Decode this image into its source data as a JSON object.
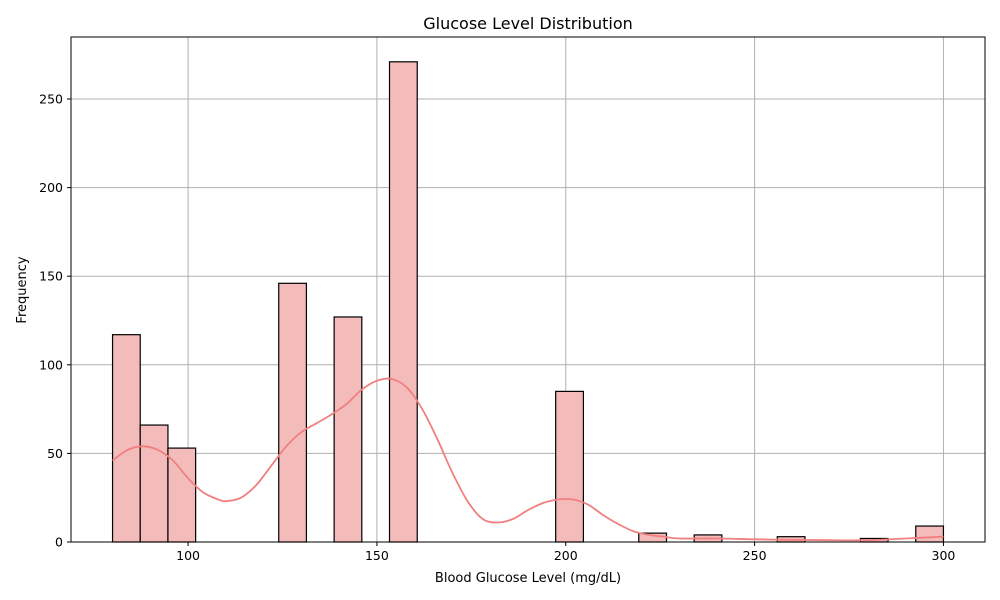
{
  "chart_data": {
    "type": "bar",
    "title": "Glucose Level Distribution",
    "xlabel": "Blood Glucose Level (mg/dL)",
    "ylabel": "Frequency",
    "xlim": [
      69,
      311
    ],
    "ylim": [
      0,
      285
    ],
    "x_ticks": [
      100,
      150,
      200,
      250,
      300
    ],
    "y_ticks": [
      0,
      50,
      100,
      150,
      200,
      250
    ],
    "grid": true,
    "bar_color": "#f4bbbb",
    "bar_edge_color": "#000000",
    "kde_color": "#f08080",
    "bins": [
      {
        "start": 80.0,
        "end": 87.33,
        "count": 117
      },
      {
        "start": 87.33,
        "end": 94.67,
        "count": 66
      },
      {
        "start": 94.67,
        "end": 102.0,
        "count": 53
      },
      {
        "start": 102.0,
        "end": 109.33,
        "count": 0
      },
      {
        "start": 109.33,
        "end": 116.67,
        "count": 0
      },
      {
        "start": 116.67,
        "end": 124.0,
        "count": 0
      },
      {
        "start": 124.0,
        "end": 131.33,
        "count": 146
      },
      {
        "start": 131.33,
        "end": 138.67,
        "count": 0
      },
      {
        "start": 138.67,
        "end": 146.0,
        "count": 127
      },
      {
        "start": 146.0,
        "end": 153.33,
        "count": 0
      },
      {
        "start": 153.33,
        "end": 160.67,
        "count": 271
      },
      {
        "start": 160.67,
        "end": 168.0,
        "count": 0
      },
      {
        "start": 168.0,
        "end": 175.33,
        "count": 0
      },
      {
        "start": 175.33,
        "end": 182.67,
        "count": 0
      },
      {
        "start": 182.67,
        "end": 190.0,
        "count": 0
      },
      {
        "start": 190.0,
        "end": 197.33,
        "count": 0
      },
      {
        "start": 197.33,
        "end": 204.67,
        "count": 85
      },
      {
        "start": 204.67,
        "end": 212.0,
        "count": 0
      },
      {
        "start": 212.0,
        "end": 219.33,
        "count": 0
      },
      {
        "start": 219.33,
        "end": 226.67,
        "count": 5
      },
      {
        "start": 226.67,
        "end": 234.0,
        "count": 0
      },
      {
        "start": 234.0,
        "end": 241.33,
        "count": 4
      },
      {
        "start": 241.33,
        "end": 248.67,
        "count": 0
      },
      {
        "start": 248.67,
        "end": 256.0,
        "count": 0
      },
      {
        "start": 256.0,
        "end": 263.33,
        "count": 3
      },
      {
        "start": 263.33,
        "end": 270.67,
        "count": 0
      },
      {
        "start": 270.67,
        "end": 278.0,
        "count": 0
      },
      {
        "start": 278.0,
        "end": 285.33,
        "count": 2
      },
      {
        "start": 285.33,
        "end": 292.67,
        "count": 0
      },
      {
        "start": 292.67,
        "end": 300.0,
        "count": 9
      }
    ],
    "kde_curve": {
      "x": [
        80,
        84,
        88,
        92,
        96,
        100,
        104,
        108,
        110,
        114,
        118,
        122,
        126,
        130,
        134,
        138,
        142,
        146,
        150,
        154,
        158,
        162,
        166,
        170,
        174,
        178,
        182,
        186,
        190,
        194,
        198,
        202,
        206,
        210,
        214,
        218,
        222,
        226,
        230,
        240,
        250,
        260,
        270,
        280,
        290,
        300
      ],
      "y": [
        46,
        52,
        54,
        52,
        46,
        36,
        28,
        24,
        23,
        25,
        32,
        43,
        54,
        62,
        67,
        72,
        78,
        86,
        91,
        92,
        87,
        75,
        58,
        39,
        23,
        13,
        11,
        13,
        18,
        22,
        24,
        24,
        21,
        15,
        10,
        6,
        4,
        3,
        2,
        2,
        1.5,
        1.2,
        1,
        1,
        2,
        3
      ]
    }
  }
}
